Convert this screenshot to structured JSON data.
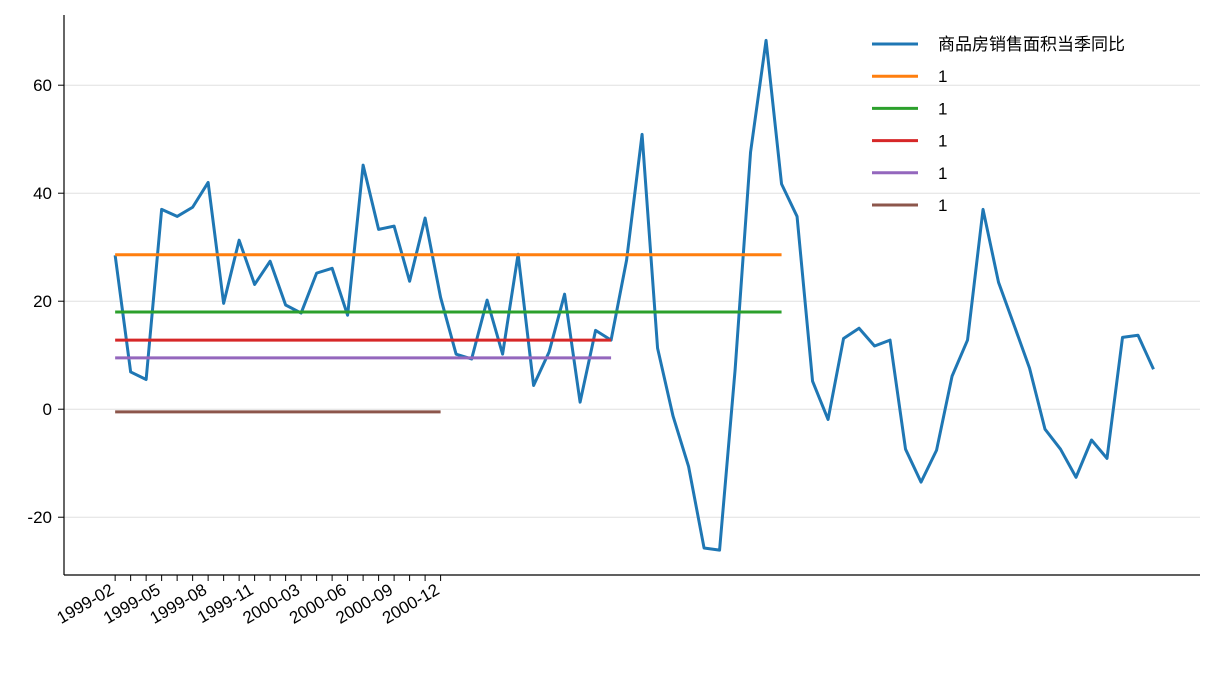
{
  "chart_data": {
    "type": "line",
    "xlim": [
      -3.3,
      70
    ],
    "ylim": [
      -30.7,
      73
    ],
    "yticks": [
      -20,
      0,
      20,
      40,
      60
    ],
    "xticks": [
      {
        "value": 0,
        "label": "1999-02"
      },
      {
        "value": 3,
        "label": "1999-05"
      },
      {
        "value": 6,
        "label": "1999-08"
      },
      {
        "value": 9,
        "label": "1999-11"
      },
      {
        "value": 12,
        "label": "2000-03"
      },
      {
        "value": 15,
        "label": "2000-06"
      },
      {
        "value": 18,
        "label": "2000-09"
      },
      {
        "value": 21,
        "label": "2000-12"
      }
    ],
    "xminorticks": [
      1,
      2,
      4,
      5,
      7,
      8,
      10,
      11,
      13,
      14,
      16,
      17,
      19,
      20
    ],
    "grid": true,
    "legend": "upper right",
    "series": [
      {
        "name": "商品房销售面积当季同比",
        "color": "#1f77b4",
        "x": [
          0,
          1,
          2,
          3,
          4,
          5,
          6,
          7,
          8,
          9,
          10,
          11,
          12,
          13,
          14,
          15,
          16,
          17,
          18,
          19,
          20,
          21,
          22,
          23,
          24,
          25,
          26,
          27,
          28,
          29,
          30,
          31,
          32,
          33,
          34,
          35,
          36,
          37,
          38,
          39,
          40,
          41,
          42,
          43,
          44,
          45,
          46,
          47,
          48,
          49,
          50,
          51,
          52,
          53,
          54,
          55,
          56,
          57,
          58,
          59,
          60,
          61,
          62,
          63,
          64,
          65,
          66,
          67
        ],
        "values": [
          28.5,
          6.9,
          5.5,
          37,
          35.7,
          37.4,
          42,
          19.6,
          31.3,
          23.1,
          27.4,
          19.3,
          17.8,
          25.2,
          26.1,
          17.4,
          45.2,
          33.3,
          33.9,
          23.7,
          35.4,
          20.7,
          10.2,
          9.3,
          20.2,
          10.2,
          28.7,
          4.4,
          10.6,
          21.3,
          1.3,
          14.6,
          12.8,
          27.6,
          50.9,
          11.3,
          -1.3,
          -10.6,
          -25.7,
          -26.1,
          7.2,
          47.6,
          68.3,
          41.7,
          35.7,
          5.2,
          -1.9,
          13.1,
          15,
          11.7,
          12.8,
          -7.4,
          -13.5,
          -7.6,
          6.1,
          12.8,
          37,
          23.5,
          15.6,
          7.6,
          -3.7,
          -7.4,
          -12.6,
          -5.7,
          -9.1,
          13.3,
          13.7,
          7.4
        ]
      },
      {
        "name": "1",
        "color": "#ff7f0e",
        "x": [
          0,
          43
        ],
        "values": [
          28.6,
          28.6
        ]
      },
      {
        "name": "1",
        "color": "#2ca02c",
        "x": [
          0,
          43
        ],
        "values": [
          18,
          18
        ]
      },
      {
        "name": "1",
        "color": "#d62728",
        "x": [
          0,
          32
        ],
        "values": [
          12.8,
          12.8
        ]
      },
      {
        "name": "1",
        "color": "#9467bd",
        "x": [
          0,
          32
        ],
        "values": [
          9.5,
          9.5
        ]
      },
      {
        "name": "1",
        "color": "#8c564b",
        "x": [
          0,
          21
        ],
        "values": [
          -0.5,
          -0.5
        ]
      }
    ]
  }
}
